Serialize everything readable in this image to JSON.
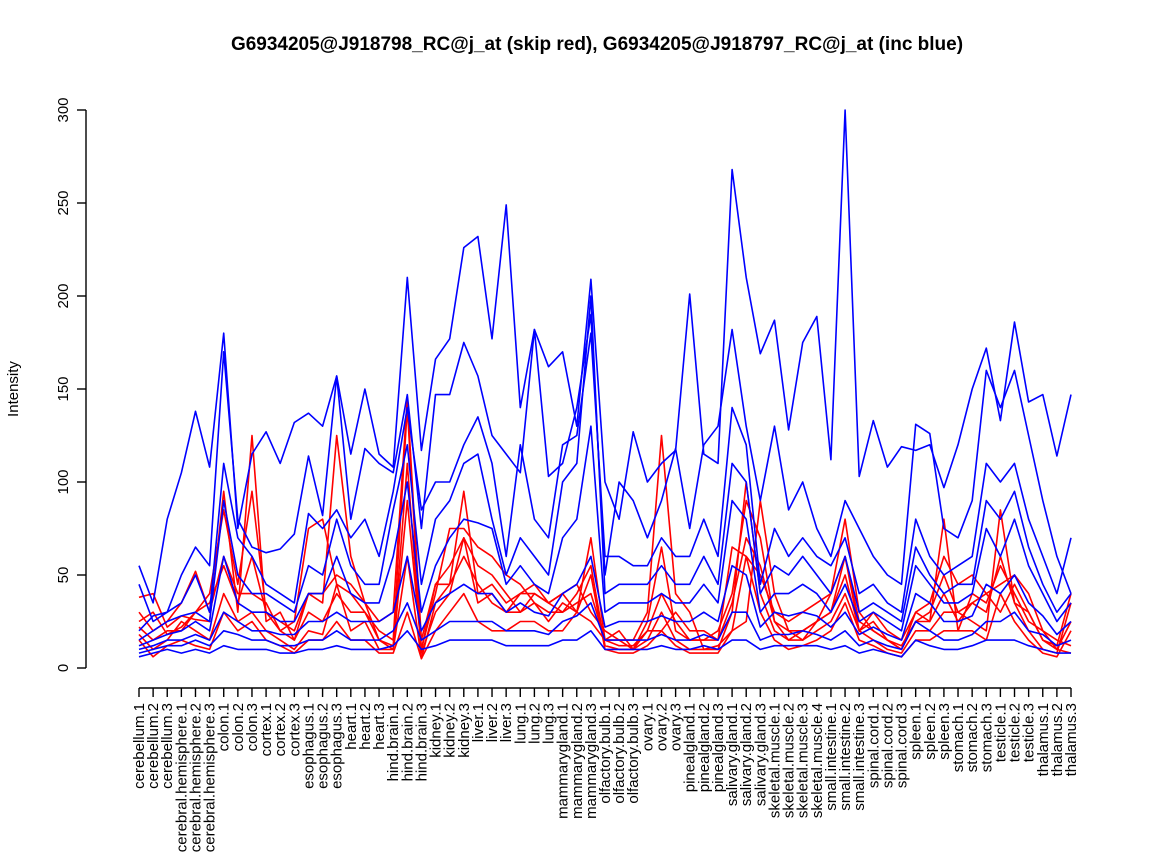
{
  "chart_data": {
    "type": "line",
    "title": "G6934205@J918798_RC@j_at (skip red), G6934205@J918797_RC@j_at (inc blue)",
    "xlabel": "",
    "ylabel": "Intensity",
    "ylim": [
      0,
      300
    ],
    "yticks": [
      0,
      50,
      100,
      150,
      200,
      250,
      300
    ],
    "grid": false,
    "legend": "none",
    "colors": {
      "skip": "#ff0000",
      "inc": "#0000ff",
      "axis": "#000000"
    },
    "categories": [
      "cerebellum.1",
      "cerebellum.2",
      "cerebellum.3",
      "cerebral.hemisphere.1",
      "cerebral.hemisphere.2",
      "cerebral.hemisphere.3",
      "colon.1",
      "colon.2",
      "colon.3",
      "cortex.1",
      "cortex.2",
      "cortex.3",
      "esophagus.1",
      "esophagus.2",
      "esophagus.3",
      "heart.1",
      "heart.2",
      "heart.3",
      "hind.brain.1",
      "hind.brain.2",
      "hind.brain.3",
      "kidney.1",
      "kidney.2",
      "kidney.3",
      "liver.1",
      "liver.2",
      "liver.3",
      "lung.1",
      "lung.2",
      "lung.3",
      "mammarygland.1",
      "mammarygland.2",
      "mammarygland.3",
      "olfactory.bulb.1",
      "olfactory.bulb.2",
      "olfactory.bulb.3",
      "ovary.1",
      "ovary.2",
      "ovary.3",
      "pinealgland.1",
      "pinealgland.2",
      "pinealgland.3",
      "salivary.gland.1",
      "salivary.gland.2",
      "salivary.gland.3",
      "skeletal.muscle.1",
      "skeletal.muscle.2",
      "skeletal.muscle.3",
      "skeletal.muscle.4",
      "small.intestine.1",
      "small.intestine.2",
      "small.intestine.3",
      "spinal.cord.1",
      "spinal.cord.2",
      "spinal.cord.3",
      "spleen.1",
      "spleen.2",
      "spleen.3",
      "stomach.1",
      "stomach.2",
      "stomach.3",
      "testicle.1",
      "testicle.2",
      "testicle.3",
      "thalamus.1",
      "thalamus.2",
      "thalamus.3"
    ],
    "series": [
      {
        "group": "skip",
        "values": [
          38,
          40,
          22,
          28,
          26,
          25,
          95,
          30,
          125,
          25,
          30,
          15,
          40,
          35,
          125,
          60,
          35,
          25,
          30,
          145,
          15,
          45,
          45,
          95,
          40,
          45,
          35,
          40,
          40,
          35,
          40,
          45,
          30,
          20,
          15,
          15,
          30,
          125,
          40,
          30,
          10,
          12,
          20,
          25,
          90,
          40,
          20,
          15,
          25,
          40,
          80,
          30,
          20,
          15,
          10,
          25,
          25,
          80,
          20,
          40,
          35,
          55,
          40,
          25,
          20,
          10,
          8
        ]
      },
      {
        "group": "skip",
        "values": [
          30,
          20,
          25,
          35,
          52,
          30,
          60,
          40,
          40,
          35,
          20,
          25,
          75,
          80,
          45,
          40,
          30,
          20,
          15,
          140,
          10,
          40,
          75,
          75,
          65,
          60,
          50,
          45,
          35,
          25,
          35,
          30,
          25,
          15,
          20,
          10,
          20,
          20,
          30,
          20,
          20,
          15,
          65,
          60,
          50,
          30,
          25,
          30,
          35,
          40,
          60,
          20,
          30,
          20,
          15,
          30,
          35,
          60,
          45,
          50,
          40,
          45,
          50,
          40,
          20,
          15,
          12
        ]
      },
      {
        "group": "skip",
        "values": [
          22,
          15,
          20,
          20,
          30,
          40,
          85,
          45,
          95,
          30,
          25,
          20,
          40,
          40,
          50,
          45,
          35,
          15,
          10,
          90,
          10,
          45,
          55,
          70,
          55,
          50,
          40,
          30,
          40,
          35,
          40,
          30,
          70,
          15,
          15,
          10,
          25,
          65,
          20,
          15,
          15,
          20,
          40,
          90,
          70,
          25,
          15,
          20,
          25,
          30,
          60,
          25,
          20,
          15,
          10,
          30,
          25,
          40,
          25,
          35,
          40,
          30,
          45,
          30,
          15,
          12,
          40
        ]
      },
      {
        "group": "skip",
        "values": [
          18,
          10,
          15,
          25,
          20,
          15,
          40,
          25,
          30,
          20,
          15,
          10,
          20,
          18,
          45,
          20,
          25,
          10,
          10,
          60,
          5,
          35,
          45,
          60,
          45,
          35,
          30,
          40,
          45,
          35,
          30,
          40,
          55,
          12,
          10,
          10,
          15,
          30,
          15,
          10,
          10,
          10,
          30,
          100,
          40,
          20,
          15,
          15,
          20,
          25,
          40,
          20,
          15,
          10,
          8,
          20,
          20,
          30,
          30,
          25,
          20,
          85,
          35,
          20,
          10,
          8,
          35
        ]
      },
      {
        "group": "skip",
        "values": [
          15,
          6,
          12,
          15,
          12,
          10,
          30,
          20,
          25,
          15,
          12,
          8,
          15,
          15,
          25,
          15,
          15,
          8,
          8,
          30,
          5,
          20,
          30,
          40,
          25,
          20,
          20,
          25,
          25,
          20,
          20,
          30,
          50,
          10,
          8,
          8,
          12,
          20,
          12,
          8,
          8,
          8,
          20,
          60,
          30,
          15,
          10,
          12,
          15,
          20,
          35,
          15,
          12,
          8,
          6,
          15,
          15,
          20,
          20,
          20,
          15,
          40,
          25,
          15,
          8,
          6,
          20
        ]
      },
      {
        "group": "skip",
        "values": [
          25,
          30,
          18,
          22,
          30,
          35,
          55,
          35,
          60,
          30,
          20,
          15,
          30,
          25,
          40,
          30,
          30,
          15,
          12,
          110,
          8,
          30,
          40,
          70,
          35,
          40,
          30,
          30,
          35,
          30,
          30,
          35,
          40,
          15,
          12,
          12,
          20,
          40,
          25,
          15,
          15,
          15,
          35,
          70,
          55,
          25,
          20,
          20,
          25,
          30,
          50,
          20,
          25,
          15,
          12,
          25,
          30,
          50,
          30,
          35,
          30,
          60,
          35,
          30,
          15,
          10,
          25
        ]
      },
      {
        "group": "inc",
        "values": [
          55,
          35,
          80,
          105,
          138,
          108,
          180,
          75,
          115,
          127,
          110,
          132,
          137,
          130,
          157,
          115,
          150,
          115,
          108,
          210,
          117,
          166,
          177,
          226,
          232,
          177,
          249,
          140,
          182,
          162,
          170,
          130,
          209,
          100,
          80,
          127,
          100,
          110,
          117,
          201,
          115,
          110,
          268,
          210,
          169,
          187,
          128,
          175,
          189,
          112,
          300,
          103,
          133,
          108,
          119,
          117,
          120,
          97,
          120,
          150,
          172,
          133,
          186,
          143,
          147,
          114,
          147
        ]
      },
      {
        "group": "inc",
        "values": [
          45,
          25,
          30,
          50,
          65,
          55,
          170,
          80,
          65,
          62,
          64,
          72,
          114,
          82,
          157,
          80,
          118,
          110,
          105,
          147,
          75,
          147,
          147,
          175,
          157,
          125,
          115,
          105,
          182,
          103,
          110,
          140,
          190,
          50,
          100,
          90,
          70,
          90,
          118,
          75,
          120,
          130,
          182,
          130,
          90,
          130,
          85,
          100,
          75,
          60,
          90,
          75,
          60,
          50,
          45,
          131,
          126,
          75,
          70,
          90,
          160,
          140,
          160,
          125,
          90,
          60,
          40
        ]
      },
      {
        "group": "inc",
        "values": [
          20,
          28,
          30,
          35,
          50,
          30,
          110,
          70,
          60,
          45,
          40,
          35,
          83,
          75,
          85,
          70,
          80,
          60,
          95,
          140,
          85,
          100,
          100,
          120,
          135,
          110,
          60,
          120,
          80,
          70,
          120,
          125,
          180,
          60,
          60,
          55,
          55,
          70,
          60,
          60,
          80,
          60,
          140,
          120,
          45,
          75,
          60,
          70,
          60,
          55,
          70,
          40,
          45,
          35,
          30,
          80,
          60,
          50,
          55,
          60,
          110,
          100,
          110,
          80,
          60,
          40,
          70
        ]
      },
      {
        "group": "inc",
        "values": [
          15,
          20,
          25,
          28,
          30,
          25,
          90,
          50,
          40,
          40,
          35,
          30,
          55,
          50,
          80,
          55,
          45,
          45,
          85,
          120,
          45,
          80,
          90,
          110,
          115,
          80,
          50,
          70,
          60,
          50,
          100,
          110,
          200,
          40,
          45,
          45,
          45,
          55,
          45,
          45,
          60,
          45,
          110,
          100,
          40,
          55,
          50,
          60,
          50,
          40,
          60,
          30,
          35,
          30,
          25,
          65,
          50,
          40,
          45,
          45,
          90,
          80,
          95,
          65,
          45,
          30,
          40
        ]
      },
      {
        "group": "inc",
        "values": [
          12,
          15,
          18,
          20,
          25,
          20,
          60,
          35,
          30,
          30,
          25,
          25,
          40,
          40,
          60,
          40,
          35,
          35,
          60,
          100,
          30,
          55,
          70,
          80,
          78,
          75,
          45,
          55,
          45,
          40,
          70,
          80,
          130,
          30,
          35,
          35,
          35,
          40,
          35,
          35,
          45,
          35,
          90,
          80,
          30,
          40,
          40,
          45,
          40,
          30,
          45,
          25,
          30,
          25,
          20,
          55,
          45,
          35,
          35,
          40,
          75,
          60,
          80,
          55,
          40,
          25,
          35
        ]
      },
      {
        "group": "inc",
        "values": [
          10,
          12,
          15,
          15,
          18,
          15,
          30,
          25,
          20,
          20,
          18,
          18,
          25,
          25,
          30,
          25,
          25,
          25,
          30,
          60,
          20,
          35,
          40,
          45,
          40,
          40,
          30,
          35,
          30,
          28,
          40,
          45,
          60,
          22,
          25,
          25,
          25,
          28,
          25,
          25,
          30,
          25,
          55,
          50,
          22,
          30,
          28,
          30,
          28,
          22,
          30,
          18,
          22,
          18,
          15,
          40,
          35,
          25,
          25,
          28,
          45,
          40,
          50,
          35,
          28,
          18,
          25
        ]
      },
      {
        "group": "inc",
        "values": [
          8,
          10,
          12,
          12,
          15,
          12,
          20,
          18,
          15,
          15,
          12,
          12,
          15,
          15,
          20,
          15,
          15,
          15,
          20,
          35,
          15,
          20,
          25,
          25,
          25,
          25,
          20,
          20,
          20,
          18,
          25,
          28,
          35,
          15,
          15,
          15,
          15,
          18,
          15,
          15,
          18,
          15,
          30,
          30,
          15,
          18,
          18,
          20,
          18,
          15,
          20,
          12,
          15,
          12,
          10,
          25,
          20,
          15,
          15,
          18,
          25,
          25,
          30,
          20,
          18,
          12,
          15
        ]
      },
      {
        "group": "inc",
        "values": [
          6,
          8,
          10,
          8,
          10,
          8,
          12,
          10,
          10,
          10,
          8,
          8,
          10,
          10,
          12,
          10,
          10,
          10,
          12,
          20,
          10,
          12,
          15,
          15,
          15,
          15,
          12,
          12,
          12,
          12,
          15,
          15,
          20,
          10,
          10,
          10,
          10,
          12,
          10,
          10,
          12,
          10,
          15,
          15,
          10,
          12,
          12,
          12,
          12,
          10,
          12,
          8,
          10,
          8,
          6,
          15,
          12,
          10,
          10,
          12,
          15,
          15,
          15,
          12,
          10,
          8,
          8
        ]
      }
    ]
  }
}
